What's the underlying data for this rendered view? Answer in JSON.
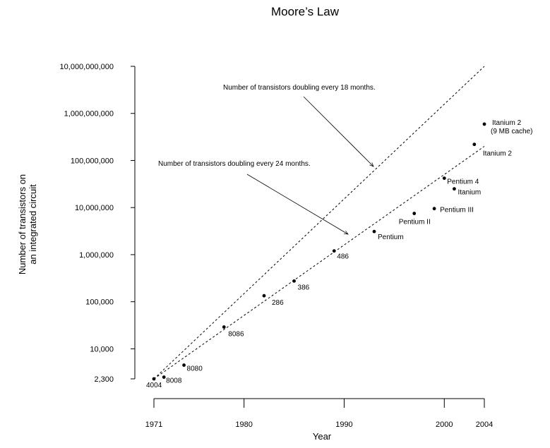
{
  "chart_data": {
    "type": "scatter",
    "title": "Moore’s Law",
    "xlabel": "Year",
    "ylabel_lines": [
      "Number of transistors on",
      "an integrated circuit"
    ],
    "yscale": "log",
    "xlim": [
      1971,
      2004
    ],
    "ylim": [
      2300,
      10000000000
    ],
    "x_ticks": [
      1971,
      1980,
      1990,
      2000,
      2004
    ],
    "y_ticks": [
      {
        "value": 2300,
        "label": "2,300"
      },
      {
        "value": 10000,
        "label": "10,000"
      },
      {
        "value": 100000,
        "label": "100,000"
      },
      {
        "value": 1000000,
        "label": "1,000,000"
      },
      {
        "value": 10000000,
        "label": "10,000,000"
      },
      {
        "value": 100000000,
        "label": "100,000,000"
      },
      {
        "value": 1000000000,
        "label": "1,000,000,000"
      },
      {
        "value": 10000000000,
        "label": "10,000,000,000"
      }
    ],
    "grid": false,
    "points": [
      {
        "x": 1971,
        "y": 2300,
        "label": "4004"
      },
      {
        "x": 1972,
        "y": 2500,
        "label": "8008"
      },
      {
        "x": 1974,
        "y": 4500,
        "label": "8080"
      },
      {
        "x": 1978,
        "y": 29000,
        "label": "8086"
      },
      {
        "x": 1982,
        "y": 134000,
        "label": "286"
      },
      {
        "x": 1985,
        "y": 275000,
        "label": "386"
      },
      {
        "x": 1989,
        "y": 1200000,
        "label": "486"
      },
      {
        "x": 1993,
        "y": 3100000,
        "label": "Pentium"
      },
      {
        "x": 1997,
        "y": 7500000,
        "label": "Pentium II"
      },
      {
        "x": 1999,
        "y": 9500000,
        "label": "Pentium III"
      },
      {
        "x": 2000,
        "y": 42000000,
        "label": "Pentium 4"
      },
      {
        "x": 2001,
        "y": 25000000,
        "label": "Itanium"
      },
      {
        "x": 2003,
        "y": 220000000,
        "label": "Itanium 2"
      },
      {
        "x": 2004,
        "y": 592000000,
        "label": "Itanium 2",
        "label2": "(9 MB cache)"
      }
    ],
    "trend_lines": [
      {
        "name": "Number of transistors doubling every 18 months.",
        "start": {
          "x": 1971,
          "y": 2300
        },
        "end": {
          "x": 2004,
          "y": 10000000000
        }
      },
      {
        "name": "Number of transistors doubling every 24 months.",
        "start": {
          "x": 1971,
          "y": 2300
        },
        "end": {
          "x": 2004,
          "y": 200000000
        }
      }
    ]
  }
}
